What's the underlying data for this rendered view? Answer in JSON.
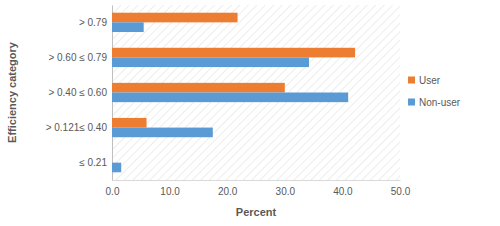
{
  "chart_data": {
    "type": "bar",
    "orientation": "horizontal",
    "x_label": "Percent",
    "y_label": "Efficiency category",
    "categories": [
      "≤ 0.21",
      "> 0.121≤ 0.40",
      "> 0.40 ≤ 0.60",
      "> 0.60 ≤ 0.79",
      "> 0.79"
    ],
    "series": [
      {
        "name": "User",
        "color": "#ed7d31",
        "values": [
          0,
          6.0,
          30.0,
          42.2,
          21.8
        ]
      },
      {
        "name": "Non-user",
        "color": "#5b9bd5",
        "values": [
          1.6,
          17.5,
          41.0,
          34.2,
          5.5
        ]
      }
    ],
    "xlim": [
      0,
      50
    ],
    "xticks": [
      {
        "value": 0,
        "label": "0.0"
      },
      {
        "value": 10,
        "label": "10.0"
      },
      {
        "value": 20,
        "label": "20.0"
      },
      {
        "value": 30,
        "label": "30.0"
      },
      {
        "value": 40,
        "label": "40.0"
      },
      {
        "value": 50,
        "label": "50.0"
      }
    ],
    "legend": "right"
  }
}
